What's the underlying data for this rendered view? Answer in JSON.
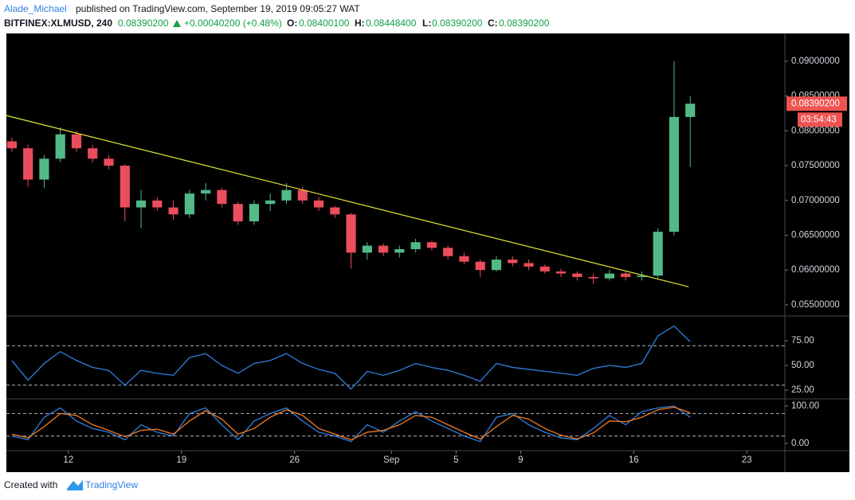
{
  "header": {
    "author": "Alade_Michael",
    "published": "published on TradingView.com, September 19, 2019 09:05:27 WAT",
    "symbol": "BITFINEX:XLMUSD, 240",
    "last": "0.08390200",
    "change": "+0.00040200 (+0.48%)",
    "open_label": "O:",
    "open": "0.08400100",
    "high_label": "H:",
    "high": "0.08448400",
    "low_label": "L:",
    "low": "0.08390200",
    "close_label": "C:",
    "close": "0.08390200"
  },
  "footer": {
    "created": "Created with",
    "brand": "TradingView"
  },
  "chart_data": [
    {
      "type": "candlestick",
      "x": [
        8,
        9,
        10,
        11,
        12,
        13,
        14,
        15,
        16,
        17,
        18,
        19,
        20,
        21,
        22,
        23,
        24,
        25,
        26,
        27,
        28,
        29,
        30,
        31,
        32,
        33,
        34,
        35,
        36,
        37,
        38,
        39,
        40,
        41,
        42,
        43,
        44,
        45,
        46,
        47,
        48,
        49,
        50
      ],
      "xlim": [
        8.16,
        56.36
      ],
      "open": [
        0.0785,
        0.0775,
        0.073,
        0.076,
        0.0795,
        0.0775,
        0.076,
        0.075,
        0.069,
        0.07,
        0.069,
        0.068,
        0.071,
        0.0715,
        0.0695,
        0.067,
        0.0695,
        0.07,
        0.0715,
        0.07,
        0.069,
        0.068,
        0.0625,
        0.0635,
        0.0625,
        0.063,
        0.064,
        0.0632,
        0.062,
        0.0612,
        0.06,
        0.0615,
        0.061,
        0.0605,
        0.0598,
        0.0595,
        0.059,
        0.0588,
        0.0595,
        0.059,
        0.0592,
        0.0655,
        0.082
      ],
      "high": [
        0.079,
        0.078,
        0.0765,
        0.0805,
        0.08,
        0.078,
        0.0765,
        0.0752,
        0.0715,
        0.0705,
        0.07,
        0.0715,
        0.0725,
        0.0718,
        0.0698,
        0.07,
        0.071,
        0.0725,
        0.072,
        0.0705,
        0.0692,
        0.0682,
        0.064,
        0.0638,
        0.0635,
        0.0645,
        0.0642,
        0.0635,
        0.0625,
        0.0615,
        0.062,
        0.062,
        0.0615,
        0.0608,
        0.0602,
        0.0598,
        0.0595,
        0.06,
        0.0598,
        0.0598,
        0.066,
        0.09,
        0.085
      ],
      "low": [
        0.077,
        0.072,
        0.0718,
        0.0755,
        0.077,
        0.0755,
        0.0745,
        0.067,
        0.066,
        0.0685,
        0.0672,
        0.0675,
        0.07,
        0.069,
        0.0665,
        0.0665,
        0.0685,
        0.0695,
        0.0695,
        0.0685,
        0.0675,
        0.0602,
        0.0615,
        0.062,
        0.0618,
        0.0625,
        0.0628,
        0.0615,
        0.0608,
        0.059,
        0.0598,
        0.0605,
        0.06,
        0.0595,
        0.059,
        0.0585,
        0.058,
        0.0585,
        0.0585,
        0.0585,
        0.0588,
        0.065,
        0.0748
      ],
      "close": [
        0.0775,
        0.073,
        0.076,
        0.0795,
        0.0775,
        0.076,
        0.075,
        0.069,
        0.07,
        0.069,
        0.068,
        0.071,
        0.0715,
        0.0695,
        0.067,
        0.0695,
        0.07,
        0.0715,
        0.07,
        0.069,
        0.068,
        0.0625,
        0.0635,
        0.0625,
        0.063,
        0.064,
        0.0632,
        0.062,
        0.0612,
        0.06,
        0.0615,
        0.061,
        0.0605,
        0.0598,
        0.0595,
        0.059,
        0.0588,
        0.0595,
        0.059,
        0.0592,
        0.0655,
        0.082,
        0.083902
      ],
      "up_color": "#53b987",
      "down_color": "#eb4d5c",
      "ylim": [
        0.0535,
        0.094
      ],
      "yticks": [
        {
          "value": 0.055,
          "label": "0.05500000"
        },
        {
          "value": 0.06,
          "label": "0.06000000"
        },
        {
          "value": 0.065,
          "label": "0.06500000"
        },
        {
          "value": 0.07,
          "label": "0.07000000"
        },
        {
          "value": 0.075,
          "label": "0.07500000"
        },
        {
          "value": 0.08,
          "label": "0.08000000"
        },
        {
          "value": 0.085,
          "label": "0.08500000"
        },
        {
          "value": 0.09,
          "label": "0.09000000"
        }
      ],
      "trendline": {
        "x": [
          8.16,
          50.4
        ],
        "y": [
          0.0822,
          0.0576
        ],
        "color": "#e6e62e"
      },
      "last_price": {
        "value": 0.083902,
        "label": "0.08390200",
        "countdown": "03:54:43",
        "color": "#ef5350"
      }
    },
    {
      "type": "line",
      "x": [
        8,
        9,
        10,
        11,
        12,
        13,
        14,
        15,
        16,
        17,
        18,
        19,
        20,
        21,
        22,
        23,
        24,
        25,
        26,
        27,
        28,
        29,
        30,
        31,
        32,
        33,
        34,
        35,
        36,
        37,
        38,
        39,
        40,
        41,
        42,
        43,
        44,
        45,
        46,
        47,
        48,
        49,
        50
      ],
      "xlim": [
        8.16,
        56.36
      ],
      "ylim": [
        16.9,
        99.2
      ],
      "yticks": [
        {
          "value": 75,
          "label": "75.00"
        },
        {
          "value": 50,
          "label": "50.00"
        },
        {
          "value": 25,
          "label": "25.00"
        }
      ],
      "bands": [
        30,
        70
      ],
      "series": [
        {
          "color": "#2f7fe0",
          "values": [
            55,
            35,
            52,
            64,
            55,
            48,
            45,
            30,
            45,
            42,
            40,
            58,
            62,
            50,
            42,
            52,
            55,
            62,
            52,
            46,
            42,
            26,
            44,
            40,
            45,
            52,
            48,
            45,
            40,
            34,
            52,
            48,
            46,
            44,
            42,
            40,
            47,
            50,
            48,
            52,
            80,
            90,
            74
          ]
        }
      ]
    },
    {
      "type": "line",
      "x": [
        8,
        9,
        10,
        11,
        12,
        13,
        14,
        15,
        16,
        17,
        18,
        19,
        20,
        21,
        22,
        23,
        24,
        25,
        26,
        27,
        28,
        29,
        30,
        31,
        32,
        33,
        34,
        35,
        36,
        37,
        38,
        39,
        40,
        41,
        42,
        43,
        44,
        45,
        46,
        47,
        48,
        49,
        50
      ],
      "xlim": [
        8.16,
        56.36
      ],
      "ylim": [
        -17,
        117
      ],
      "yticks": [
        {
          "value": 100,
          "label": "100.00"
        },
        {
          "value": 0,
          "label": "0.00"
        }
      ],
      "bands": [
        20,
        80
      ],
      "xticks": [
        12,
        19,
        26,
        {
          "value": 32,
          "label": "Sep"
        },
        {
          "value": 36,
          "label": "5"
        },
        {
          "value": 40,
          "label": "9"
        },
        {
          "value": 47,
          "label": "16"
        },
        {
          "value": 54,
          "label": "23"
        }
      ],
      "series": [
        {
          "color": "#2f7fe0",
          "values": [
            20,
            10,
            70,
            95,
            60,
            40,
            30,
            10,
            50,
            30,
            20,
            80,
            95,
            50,
            10,
            60,
            80,
            95,
            60,
            30,
            20,
            5,
            50,
            30,
            60,
            85,
            60,
            40,
            20,
            5,
            70,
            80,
            50,
            30,
            15,
            10,
            40,
            75,
            50,
            85,
            95,
            100,
            70
          ]
        },
        {
          "color": "#f57c1f",
          "values": [
            25,
            15,
            45,
            80,
            75,
            50,
            35,
            18,
            35,
            38,
            25,
            60,
            88,
            65,
            25,
            40,
            70,
            90,
            75,
            40,
            25,
            10,
            30,
            35,
            50,
            75,
            70,
            50,
            30,
            12,
            45,
            75,
            65,
            40,
            22,
            12,
            28,
            60,
            58,
            70,
            90,
            97,
            82
          ]
        }
      ]
    }
  ]
}
